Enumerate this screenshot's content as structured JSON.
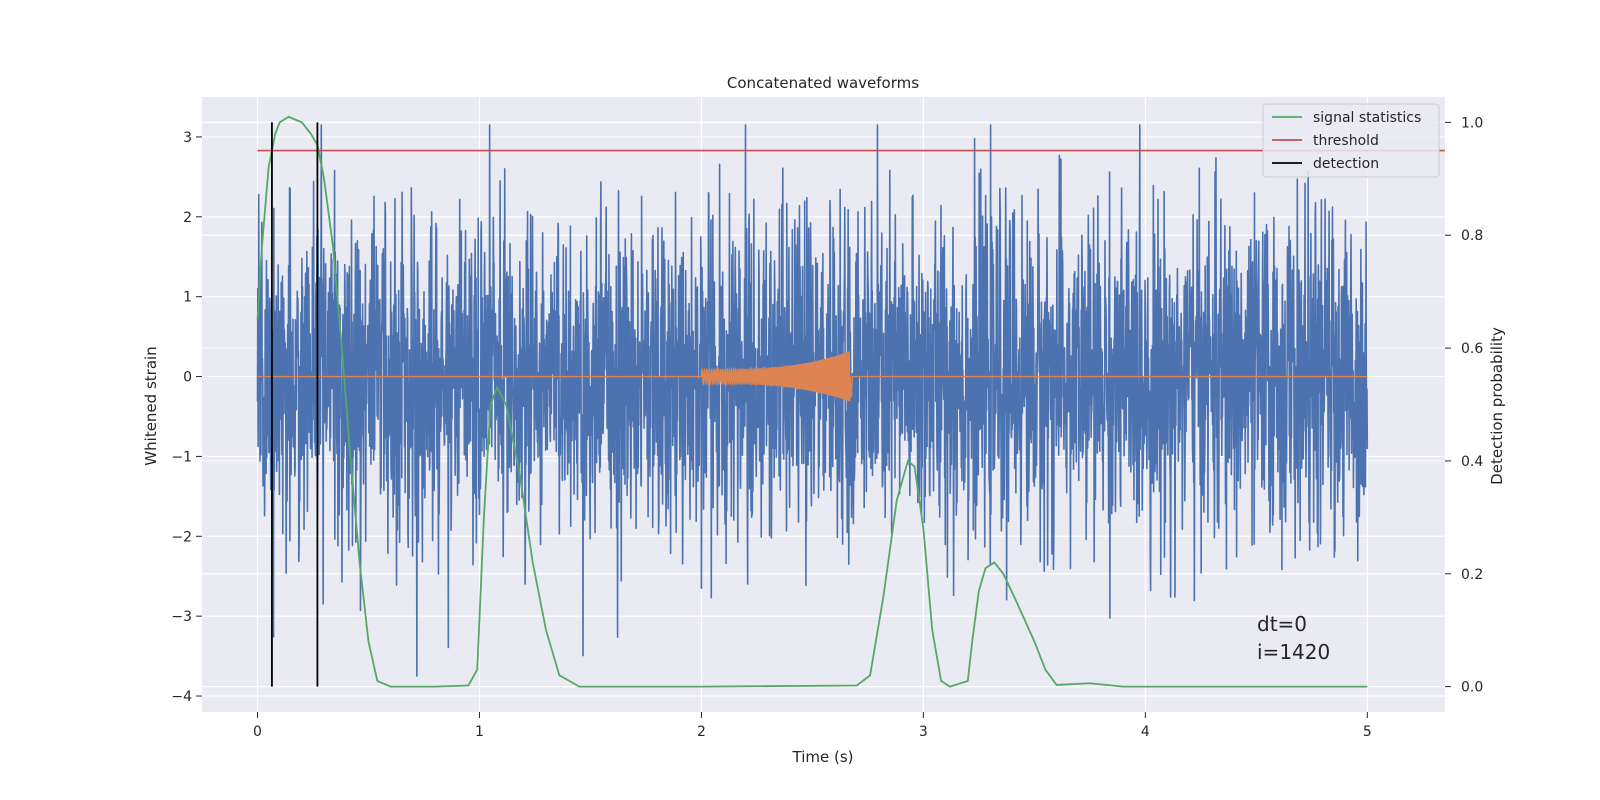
{
  "chart_data": {
    "type": "line",
    "title": "Concatenated waveforms",
    "xlabel": "Time (s)",
    "ylabel_left": "Whitened strain",
    "ylabel_right": "Detection probability",
    "xlim": [
      -0.25,
      5.35
    ],
    "ylim_left": [
      -4.2,
      3.5
    ],
    "ylim_right": [
      -0.045,
      1.045
    ],
    "x_ticks": [
      0,
      1,
      2,
      3,
      4,
      5
    ],
    "x_tick_labels": [
      "0",
      "1",
      "2",
      "3",
      "4",
      "5"
    ],
    "y_left_ticks": [
      -4,
      -3,
      -2,
      -1,
      0,
      1,
      2,
      3
    ],
    "y_left_tick_labels": [
      "−4",
      "−3",
      "−2",
      "−1",
      "0",
      "1",
      "2",
      "3"
    ],
    "y_right_ticks": [
      0.0,
      0.2,
      0.4,
      0.6,
      0.8,
      1.0
    ],
    "y_right_tick_labels": [
      "0.0",
      "0.2",
      "0.4",
      "0.6",
      "0.8",
      "1.0"
    ],
    "grid": true,
    "legend_position": "top-right",
    "legend": [
      "signal statistics",
      "threshold",
      "detection"
    ],
    "colors": {
      "noise": "#4c72b0",
      "waveform": "#dd8452",
      "signal_statistics": "#55a868",
      "threshold": "#c44e52",
      "detection": "#000000",
      "plot_bg": "#eaeaf2",
      "grid": "#ffffff"
    },
    "noise_series": {
      "x_range": [
        0,
        5
      ],
      "approx_range": [
        -3.75,
        3.15
      ],
      "note_values": "whitened noise strain, dense random"
    },
    "waveform_series": {
      "x_start": 2.0,
      "x_merger": 2.67,
      "x_end": 5.0,
      "peak_amplitude": 0.32
    },
    "signal_statistics": {
      "x": [
        0.0,
        0.02,
        0.05,
        0.08,
        0.1,
        0.14,
        0.2,
        0.24,
        0.27,
        0.3,
        0.34,
        0.38,
        0.42,
        0.46,
        0.5,
        0.54,
        0.6,
        0.8,
        0.95,
        0.99,
        1.02,
        1.05,
        1.08,
        1.12,
        1.18,
        1.24,
        1.3,
        1.36,
        1.45,
        2.0,
        2.7,
        2.76,
        2.82,
        2.88,
        2.93,
        2.96,
        3.0,
        3.04,
        3.08,
        3.12,
        3.2,
        3.22,
        3.25,
        3.28,
        3.32,
        3.36,
        3.42,
        3.5,
        3.55,
        3.6,
        3.75,
        3.8,
        3.9,
        4.5,
        5.0
      ],
      "y": [
        0.65,
        0.78,
        0.92,
        0.98,
        1.0,
        1.01,
        1.0,
        0.98,
        0.96,
        0.9,
        0.78,
        0.6,
        0.4,
        0.22,
        0.08,
        0.01,
        0.0,
        0.0,
        0.002,
        0.03,
        0.3,
        0.5,
        0.53,
        0.5,
        0.38,
        0.22,
        0.1,
        0.02,
        0.0,
        0.0,
        0.002,
        0.02,
        0.16,
        0.33,
        0.4,
        0.39,
        0.28,
        0.1,
        0.01,
        0.0,
        0.01,
        0.08,
        0.17,
        0.21,
        0.22,
        0.2,
        0.15,
        0.08,
        0.03,
        0.003,
        0.006,
        0.004,
        0.0,
        0.0,
        0.0
      ]
    },
    "threshold": {
      "x": [
        0,
        5.5
      ],
      "y": 0.95
    },
    "detections": [
      0.065,
      0.27
    ],
    "annotations": {
      "dt": "dt=0",
      "i": "i=1420",
      "x": 4.5
    }
  }
}
